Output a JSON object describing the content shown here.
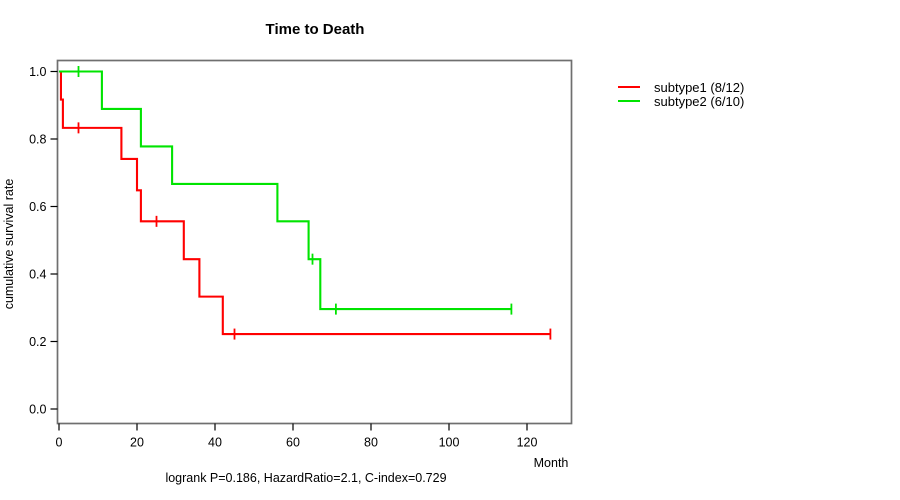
{
  "title": "Time to Death",
  "caption": "logrank P=0.186, HazardRatio=2.1, C-index=0.729",
  "axes": {
    "x_label": "Month",
    "y_label": "cumulative survival rate",
    "x_ticks": [
      0,
      20,
      40,
      60,
      80,
      100,
      120
    ],
    "y_ticks": [
      "0.0",
      "0.2",
      "0.4",
      "0.6",
      "0.8",
      "1.0"
    ]
  },
  "legend": [
    {
      "label": "subtype1 (8/12)",
      "color": "#ff0000"
    },
    {
      "label": "subtype2 (6/10)",
      "color": "#00e400"
    }
  ],
  "colors": {
    "box_border": "#6f6f6f",
    "axis_ticks": "#000000",
    "background": "#ffffff"
  },
  "chart_data": {
    "type": "line",
    "subtype": "kaplan-meier-step",
    "title": "Time to Death",
    "xlabel": "Month",
    "ylabel": "cumulative survival rate",
    "xlim": [
      0,
      131
    ],
    "ylim": [
      0,
      1
    ],
    "grid": false,
    "legend_position": "right-outside",
    "stats_caption": "logrank P=0.186, HazardRatio=2.1, C-index=0.729",
    "series": [
      {
        "name": "subtype1 (8/12)",
        "color": "#ff0000",
        "n_total": 12,
        "n_events": 8,
        "steps": [
          [
            0,
            1.0
          ],
          [
            0.5,
            0.917
          ],
          [
            1,
            0.833
          ],
          [
            16,
            0.741
          ],
          [
            20,
            0.648
          ],
          [
            21,
            0.556
          ],
          [
            32,
            0.444
          ],
          [
            36,
            0.333
          ],
          [
            42,
            0.222
          ]
        ],
        "end_x": 126,
        "censor_marks": [
          [
            5,
            0.833
          ],
          [
            25,
            0.556
          ],
          [
            45,
            0.222
          ],
          [
            126,
            0.222
          ]
        ]
      },
      {
        "name": "subtype2 (6/10)",
        "color": "#00e400",
        "n_total": 10,
        "n_events": 6,
        "steps": [
          [
            0,
            1.0
          ],
          [
            11,
            0.889
          ],
          [
            21,
            0.778
          ],
          [
            29,
            0.667
          ],
          [
            56,
            0.556
          ],
          [
            64,
            0.444
          ],
          [
            67,
            0.296
          ]
        ],
        "end_x": 116,
        "censor_marks": [
          [
            5,
            1.0
          ],
          [
            65,
            0.444
          ],
          [
            71,
            0.296
          ],
          [
            116,
            0.296
          ]
        ]
      }
    ]
  }
}
